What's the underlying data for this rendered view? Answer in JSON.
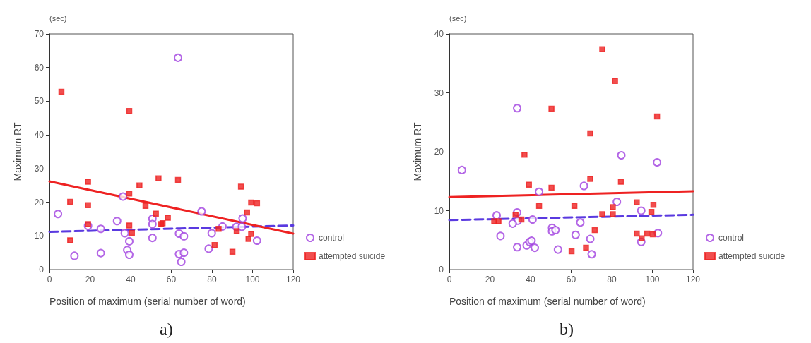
{
  "chart_data": [
    {
      "type": "scatter",
      "xlabel": "Position of maximum (serial number of word)",
      "ylabel": "Maximum RT",
      "annotations": [
        "(sec)",
        "a)"
      ],
      "xlim": [
        0,
        120
      ],
      "xticks": [
        0,
        20,
        40,
        60,
        80,
        100,
        120
      ],
      "ylim": [
        0,
        70
      ],
      "yticks": [
        0,
        10,
        20,
        30,
        40,
        50,
        60,
        70
      ],
      "grid": false,
      "legend": "bottom right",
      "series": [
        {
          "name": "control",
          "marker": "circle",
          "color": "#a040e0",
          "x": [
            4.2,
            12.3,
            19,
            25.3,
            25.3,
            33.3,
            36.2,
            37.1,
            38.3,
            39.3,
            39.3,
            50.7,
            50.7,
            50.7,
            63.3,
            63.8,
            66.2,
            63.8,
            66.2,
            64.9,
            74.9,
            78.4,
            79.9,
            85.2,
            92,
            95.1,
            94.7,
            102.2
          ],
          "values": [
            16.5,
            4.1,
            13,
            12.1,
            4.9,
            14.4,
            21.7,
            10.8,
            5.8,
            4.4,
            8.4,
            15.1,
            13.5,
            9.4,
            62.9,
            10.7,
            9.9,
            4.6,
            5,
            2.3,
            17.3,
            6.2,
            10.8,
            12.8,
            12.7,
            15.2,
            12.7,
            8.6
          ]
        },
        {
          "name": "attempted suicide",
          "marker": "square",
          "color": "#ee2222",
          "x": [
            5.9,
            39.3,
            19,
            10.2,
            19,
            19,
            10.2,
            39.3,
            39.3,
            40.6,
            44.3,
            47.3,
            52.4,
            53.7,
            55,
            55.7,
            58.3,
            63.3,
            94.3,
            99.3,
            102.2,
            97.3,
            99.3,
            98,
            92.2,
            83.3,
            81.3,
            90.1
          ],
          "values": [
            52.8,
            47.1,
            26.1,
            20.1,
            19.1,
            13.5,
            8.7,
            22.6,
            13.1,
            10.9,
            25,
            18.9,
            16.6,
            27.1,
            13.5,
            13.8,
            15.4,
            26.6,
            24.6,
            19.9,
            19.7,
            17,
            10.6,
            9.1,
            11.4,
            12.1,
            7.3,
            5.3
          ]
        },
        {
          "type": "line",
          "line_style": "dashed",
          "color": "#5a3ae0",
          "x": [
            0,
            120
          ],
          "values": [
            11.2,
            13.1
          ]
        },
        {
          "type": "line",
          "line_style": "solid",
          "color": "#ee2222",
          "x": [
            0,
            120
          ],
          "values": [
            26.2,
            10.7
          ]
        }
      ]
    },
    {
      "type": "scatter",
      "xlabel": "Position of maximum (serial number of word)",
      "ylabel": "Maximum RT",
      "annotations": [
        "(sec)",
        "b)"
      ],
      "xlim": [
        0,
        120
      ],
      "xticks": [
        0,
        20,
        40,
        60,
        80,
        100,
        120
      ],
      "ylim": [
        0,
        40
      ],
      "yticks": [
        0,
        10,
        20,
        30,
        40
      ],
      "grid": false,
      "legend": "bottom right",
      "series": [
        {
          "name": "control",
          "marker": "circle",
          "color": "#a040e0",
          "x": [
            6.2,
            33.4,
            44.2,
            23.3,
            33.4,
            33.7,
            31.2,
            41,
            25.2,
            33.4,
            38.1,
            39.5,
            40.5,
            42.1,
            50.6,
            50.6,
            52.3,
            53.5,
            66.3,
            84.7,
            102.3,
            82.5,
            94.5,
            64.5,
            62.2,
            69.4,
            70.1,
            102.7,
            94.5
          ],
          "values": [
            16.9,
            27.4,
            13.2,
            9.2,
            9.7,
            8.3,
            7.8,
            8.5,
            5.7,
            3.8,
            4.1,
            4.7,
            4.9,
            3.7,
            7.1,
            6.5,
            6.7,
            3.4,
            14.2,
            19.4,
            18.2,
            11.5,
            10,
            8,
            5.9,
            5.2,
            2.6,
            6.2,
            4.7
          ]
        },
        {
          "name": "attempted suicide",
          "marker": "square",
          "color": "#ee2222",
          "x": [
            50.3,
            37,
            39.2,
            50.3,
            44.2,
            32.6,
            35.5,
            22.1,
            24.2,
            60.2,
            75.3,
            81.6,
            102.3,
            69.4,
            69.4,
            84.5,
            61.6,
            80.5,
            75.3,
            80.5,
            92.3,
            100.5,
            99.5,
            71.6,
            67.3,
            92.3,
            94.7,
            97.4,
            100.2
          ],
          "values": [
            27.3,
            19.5,
            14.4,
            13.9,
            10.8,
            9.3,
            8.5,
            8.2,
            8.2,
            3.1,
            37.4,
            32,
            26,
            23.1,
            15.4,
            14.9,
            10.8,
            10.6,
            9.4,
            9.4,
            11.4,
            11,
            9.8,
            6.7,
            3.7,
            6.1,
            5.3,
            6.1,
            6
          ]
        },
        {
          "type": "line",
          "line_style": "dashed",
          "color": "#5a3ae0",
          "x": [
            0,
            120
          ],
          "values": [
            8.4,
            9.3
          ]
        },
        {
          "type": "line",
          "line_style": "solid",
          "color": "#ee2222",
          "x": [
            0,
            120
          ],
          "values": [
            12.3,
            13.3
          ]
        }
      ]
    }
  ]
}
